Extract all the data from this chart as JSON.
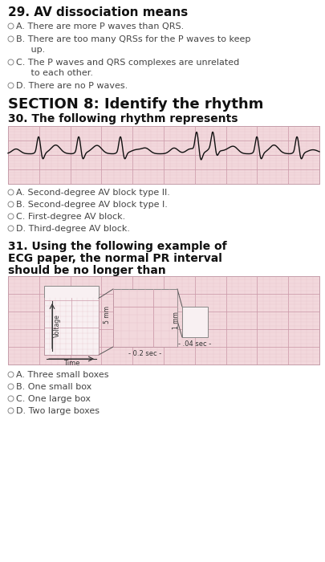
{
  "bg_color": "#ffffff",
  "q29_title": "29. AV dissociation means",
  "q29_options": [
    "A. There are more P waves than QRS.",
    "B. There are too many QRSs for the P waves to keep\n   up.",
    "C. The P waves and QRS complexes are unrelated\n   to each other.",
    "D. There are no P waves."
  ],
  "section8_title": "SECTION 8: Identify the rhythm",
  "q30_title": "30. The following rhythm represents",
  "q30_options": [
    "A. Second-degree AV block type II.",
    "B. Second-degree AV block type I.",
    "C. First-degree AV block.",
    "D. Third-degree AV block."
  ],
  "q31_title": "31. Using the following example of\nECG paper, the normal PR interval\nshould be no longer than",
  "q31_options": [
    "A. Three small boxes",
    "B. One small box",
    "C. One large box",
    "D. Two large boxes"
  ],
  "ecg_bg": "#f2d8dc",
  "ecg_grid_major": "#cc9aaa",
  "ecg_grid_minor": "#e5c0c8",
  "ecg_line": "#111111",
  "text_dark": "#111111",
  "text_opt": "#444444",
  "radio_color": "#888888"
}
